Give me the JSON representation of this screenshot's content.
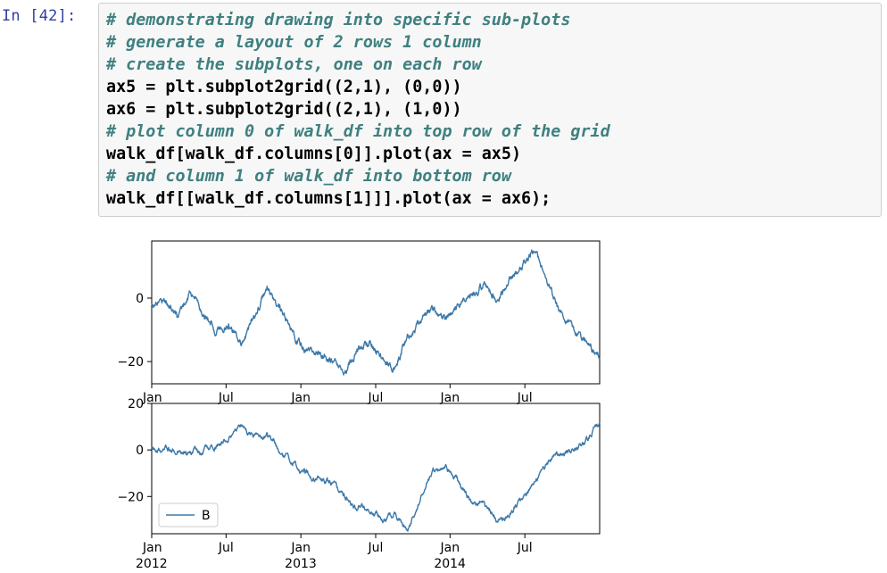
{
  "cell": {
    "prompt": "In [42]:",
    "code_lines": [
      {
        "text": "# demonstrating drawing into specific sub-plots",
        "kind": "comment"
      },
      {
        "text": "# generate a layout of 2 rows 1 column",
        "kind": "comment"
      },
      {
        "text": "# create the subplots, one on each row",
        "kind": "comment"
      },
      {
        "text": "ax5 = plt.subplot2grid((2,1), (0,0))",
        "kind": "code"
      },
      {
        "text": "ax6 = plt.subplot2grid((2,1), (1,0))",
        "kind": "code"
      },
      {
        "text": "# plot column 0 of walk_df into top row of the grid",
        "kind": "comment"
      },
      {
        "text": "walk_df[walk_df.columns[0]].plot(ax = ax5)",
        "kind": "code"
      },
      {
        "text": "# and column 1 of walk_df into bottom row",
        "kind": "comment"
      },
      {
        "text": "walk_df[[walk_df.columns[1]]].plot(ax = ax6);",
        "kind": "code"
      }
    ]
  },
  "colors": {
    "line": "#3c78a8",
    "prompt": "#303f9f",
    "comment": "#408080"
  },
  "chart_data": [
    {
      "type": "line",
      "x_range": [
        "2012-01-01",
        "2014-12-31"
      ],
      "ylim": [
        -27,
        18
      ],
      "yticks": [
        0,
        -20
      ],
      "ytick_labels": [
        "0",
        "−20"
      ],
      "xticks": [
        "Jan",
        "Jul",
        "Jan",
        "Jul",
        "Jan",
        "Jul"
      ],
      "xtick_years": [
        "",
        "",
        "",
        "",
        "",
        ""
      ],
      "legend": null,
      "series": [
        {
          "name": "",
          "x": [
            "2012-01",
            "2012-02",
            "2012-03",
            "2012-04",
            "2012-05",
            "2012-06",
            "2012-07",
            "2012-08",
            "2012-09",
            "2012-10",
            "2012-11",
            "2012-12",
            "2013-01",
            "2013-02",
            "2013-03",
            "2013-04",
            "2013-05",
            "2013-06",
            "2013-07",
            "2013-08",
            "2013-09",
            "2013-10",
            "2013-11",
            "2013-12",
            "2014-01",
            "2014-02",
            "2014-03",
            "2014-04",
            "2014-05",
            "2014-06",
            "2014-07",
            "2014-08",
            "2014-09",
            "2014-10",
            "2014-11",
            "2014-12"
          ],
          "y": [
            -2,
            0,
            -6,
            2,
            -4,
            -10,
            -8,
            -14,
            -6,
            3,
            -4,
            -12,
            -16,
            -18,
            -20,
            -24,
            -18,
            -14,
            -20,
            -22,
            -12,
            -8,
            -4,
            -6,
            -2,
            2,
            4,
            0,
            6,
            10,
            16,
            4,
            -4,
            -10,
            -14,
            -18
          ]
        }
      ]
    },
    {
      "type": "line",
      "x_range": [
        "2012-01-01",
        "2014-12-31"
      ],
      "ylim": [
        -36,
        20
      ],
      "yticks": [
        20,
        0,
        -20
      ],
      "ytick_labels": [
        "20",
        "0",
        "−20"
      ],
      "xticks": [
        "Jan",
        "Jul",
        "Jan",
        "Jul",
        "Jan",
        "Jul"
      ],
      "xtick_years": [
        "2012",
        "",
        "2013",
        "",
        "2014",
        ""
      ],
      "legend": "lower-left",
      "series": [
        {
          "name": "B",
          "x": [
            "2012-01",
            "2012-02",
            "2012-03",
            "2012-04",
            "2012-05",
            "2012-06",
            "2012-07",
            "2012-08",
            "2012-09",
            "2012-10",
            "2012-11",
            "2012-12",
            "2013-01",
            "2013-02",
            "2013-03",
            "2013-04",
            "2013-05",
            "2013-06",
            "2013-07",
            "2013-08",
            "2013-09",
            "2013-10",
            "2013-11",
            "2013-12",
            "2014-01",
            "2014-02",
            "2014-03",
            "2014-04",
            "2014-05",
            "2014-06",
            "2014-07",
            "2014-08",
            "2014-09",
            "2014-10",
            "2014-11",
            "2014-12"
          ],
          "y": [
            2,
            0,
            1,
            -1,
            0,
            2,
            4,
            10,
            5,
            6,
            0,
            -6,
            -10,
            -12,
            -14,
            -20,
            -24,
            -26,
            -30,
            -28,
            -34,
            -20,
            -10,
            -8,
            -14,
            -22,
            -24,
            -30,
            -28,
            -20,
            -14,
            -6,
            -2,
            0,
            4,
            12
          ]
        }
      ]
    }
  ]
}
